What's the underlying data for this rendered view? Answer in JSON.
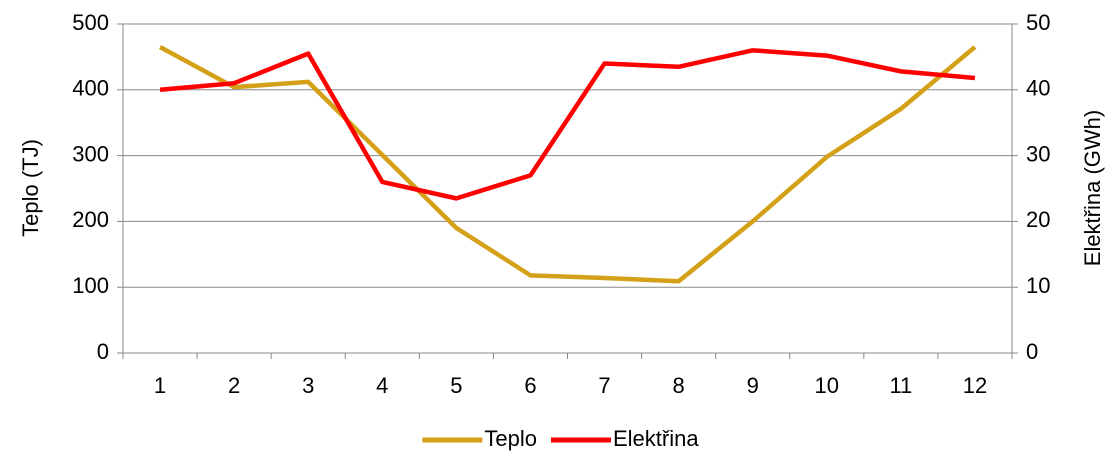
{
  "chart_data": {
    "type": "line",
    "categories": [
      "1",
      "2",
      "3",
      "4",
      "5",
      "6",
      "7",
      "8",
      "9",
      "10",
      "11",
      "12"
    ],
    "series": [
      {
        "name": "Teplo",
        "color": "#d4a017",
        "values": [
          465,
          404,
          412,
          301,
          190,
          118,
          114,
          109,
          200,
          298,
          371,
          465
        ]
      },
      {
        "name": "Elektřina",
        "color": "#ff0000",
        "axis": "y2",
        "values": [
          40,
          41,
          45.5,
          26,
          23.5,
          27,
          44,
          43.5,
          46,
          45.2,
          42.8,
          41.8
        ]
      }
    ],
    "ylabel": "Teplo (TJ)",
    "y2label": "Elektřina (GWh)",
    "ylim": [
      0,
      500
    ],
    "yticks": [
      0,
      100,
      200,
      300,
      400,
      500
    ],
    "y2lim": [
      0,
      50
    ],
    "y2ticks": [
      0,
      10,
      20,
      30,
      40,
      50
    ],
    "grid": true,
    "legend": "bottom"
  }
}
